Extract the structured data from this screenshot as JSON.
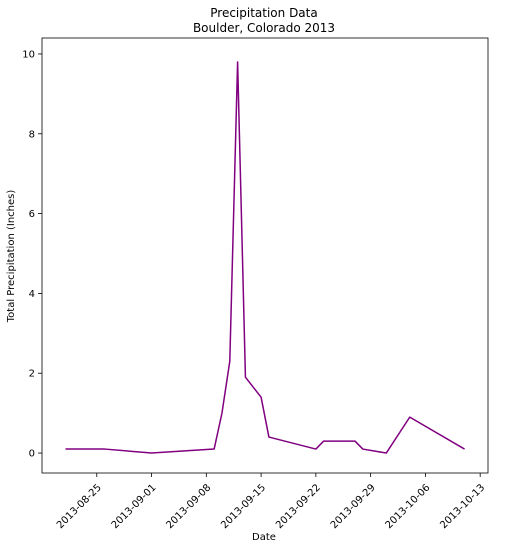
{
  "chart_data": {
    "type": "line",
    "title": "Precipitation Data",
    "subtitle": "Boulder, Colorado 2013",
    "xlabel": "Date",
    "ylabel": "Total Precipitation (Inches)",
    "x_axis_type": "date",
    "xlim": [
      "2013-08-18",
      "2013-10-14"
    ],
    "ylim": [
      -0.5,
      10.4
    ],
    "x_ticks": [
      "2013-08-25",
      "2013-09-01",
      "2013-09-08",
      "2013-09-15",
      "2013-09-22",
      "2013-09-29",
      "2013-10-06",
      "2013-10-13"
    ],
    "y_ticks": [
      0,
      2,
      4,
      6,
      8,
      10
    ],
    "grid": false,
    "line_color": "#800080",
    "series": [
      {
        "x": [
          "2013-08-21",
          "2013-08-26",
          "2013-09-01",
          "2013-09-09",
          "2013-09-10",
          "2013-09-11",
          "2013-09-12",
          "2013-09-13",
          "2013-09-15",
          "2013-09-16",
          "2013-09-22",
          "2013-09-23",
          "2013-09-27",
          "2013-09-28",
          "2013-10-01",
          "2013-10-04",
          "2013-10-11"
        ],
        "y": [
          0.1,
          0.1,
          0.0,
          0.1,
          1.0,
          2.3,
          9.8,
          1.9,
          1.4,
          0.4,
          0.1,
          0.3,
          0.3,
          0.1,
          0.0,
          0.9,
          0.1
        ]
      }
    ]
  }
}
